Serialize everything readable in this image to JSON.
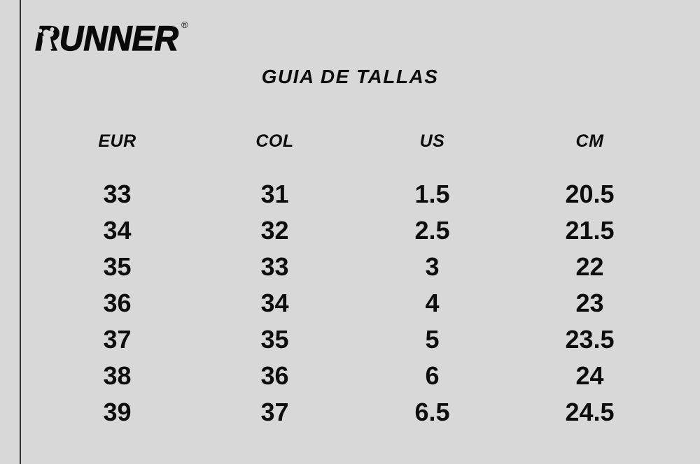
{
  "colors": {
    "background": "#d8d8d8",
    "text": "#0d0d0d",
    "accent_line": "#2f2f2f"
  },
  "brand": {
    "logo_text": "RUNNER",
    "registered_mark": "®"
  },
  "title": "GUIA DE TALLAS",
  "chart_data": {
    "type": "table",
    "title": "GUIA DE TALLAS",
    "columns": [
      "EUR",
      "COL",
      "US",
      "CM"
    ],
    "rows": [
      [
        "33",
        "31",
        "1.5",
        "20.5"
      ],
      [
        "34",
        "32",
        "2.5",
        "21.5"
      ],
      [
        "35",
        "33",
        "3",
        "22"
      ],
      [
        "36",
        "34",
        "4",
        "23"
      ],
      [
        "37",
        "35",
        "5",
        "23.5"
      ],
      [
        "38",
        "36",
        "6",
        "24"
      ],
      [
        "39",
        "37",
        "6.5",
        "24.5"
      ]
    ]
  }
}
